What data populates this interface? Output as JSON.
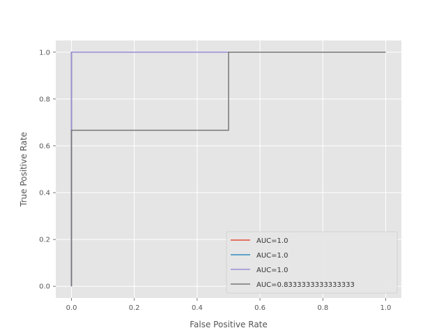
{
  "chart_data": {
    "type": "line",
    "title": "",
    "xlabel": "False Positive Rate",
    "ylabel": "True Positive Rate",
    "xlim": [
      -0.05,
      1.05
    ],
    "ylim": [
      -0.05,
      1.05
    ],
    "x_ticks": [
      0.0,
      0.2,
      0.4,
      0.6,
      0.8,
      1.0
    ],
    "x_tick_labels": [
      "0.0",
      "0.2",
      "0.4",
      "0.6",
      "0.8",
      "1.0"
    ],
    "y_ticks": [
      0.0,
      0.2,
      0.4,
      0.6,
      0.8,
      1.0
    ],
    "y_tick_labels": [
      "0.0",
      "0.2",
      "0.4",
      "0.6",
      "0.8",
      "1.0"
    ],
    "grid": true,
    "background_color": "#E5E5E5",
    "legend_position": "lower-right",
    "series": [
      {
        "name": "AUC=1.0",
        "color": "#E24A33",
        "x": [
          0.0,
          0.0,
          0.0,
          1.0
        ],
        "y": [
          0.0,
          0.6667,
          1.0,
          1.0
        ]
      },
      {
        "name": "AUC=1.0",
        "color": "#348ABD",
        "x": [
          0.0,
          0.0,
          0.0,
          1.0
        ],
        "y": [
          0.0,
          0.6667,
          1.0,
          1.0
        ]
      },
      {
        "name": "AUC=1.0",
        "color": "#988ED5",
        "x": [
          0.0,
          0.0,
          0.0,
          1.0
        ],
        "y": [
          0.0,
          0.6667,
          1.0,
          1.0
        ]
      },
      {
        "name": "AUC=0.8333333333333333",
        "color": "#777777",
        "x": [
          0.0,
          0.0,
          0.5,
          0.5,
          1.0
        ],
        "y": [
          0.0,
          0.6667,
          0.6667,
          1.0,
          1.0
        ]
      }
    ]
  }
}
